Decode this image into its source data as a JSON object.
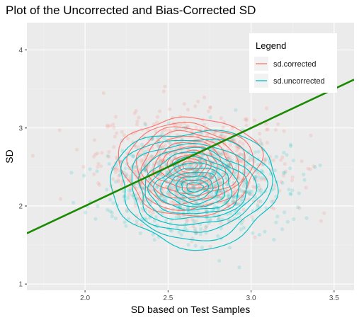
{
  "chart_data": {
    "type": "scatter",
    "title": "Plot of the Uncorrected and Bias-Corrected SD",
    "xlabel": "SD based on Test Samples",
    "ylabel": "SD",
    "xlim": [
      1.65,
      3.62
    ],
    "ylim": [
      0.92,
      4.35
    ],
    "x_ticks": [
      "2.0",
      "2.5",
      "3.0",
      "3.5"
    ],
    "x_tick_values": [
      2.0,
      2.5,
      3.0,
      3.5
    ],
    "y_ticks": [
      "1",
      "2",
      "3",
      "4"
    ],
    "y_tick_values": [
      1,
      2,
      3,
      4
    ],
    "grid": true,
    "legend": {
      "title": "Legend",
      "position": "top-right",
      "entries": [
        "sd.corrected",
        "sd.uncorrected"
      ]
    },
    "series": [
      {
        "name": "sd.corrected",
        "color": "#F8766D",
        "center": [
          2.63,
          2.52
        ],
        "spread": [
          0.27,
          0.34
        ],
        "contour_ellipses": [
          [
            0.42,
            0.63
          ],
          [
            0.37,
            0.55
          ],
          [
            0.33,
            0.48
          ],
          [
            0.29,
            0.42
          ],
          [
            0.25,
            0.36
          ],
          [
            0.21,
            0.3
          ],
          [
            0.17,
            0.24
          ],
          [
            0.13,
            0.19
          ],
          [
            0.1,
            0.14
          ],
          [
            0.07,
            0.09
          ],
          [
            0.045,
            0.055
          ]
        ]
      },
      {
        "name": "sd.uncorrected",
        "color": "#00BFC4",
        "center": [
          2.66,
          2.24
        ],
        "spread": [
          0.27,
          0.3
        ],
        "contour_ellipses": [
          [
            0.5,
            0.75
          ],
          [
            0.45,
            0.65
          ],
          [
            0.4,
            0.56
          ],
          [
            0.35,
            0.49
          ],
          [
            0.31,
            0.42
          ],
          [
            0.27,
            0.36
          ],
          [
            0.23,
            0.3
          ],
          [
            0.19,
            0.25
          ],
          [
            0.15,
            0.2
          ],
          [
            0.11,
            0.15
          ],
          [
            0.08,
            0.1
          ],
          [
            0.05,
            0.06
          ]
        ]
      }
    ],
    "reference_line": {
      "color": "#1A8A00",
      "slope": 1,
      "intercept": 0
    }
  }
}
